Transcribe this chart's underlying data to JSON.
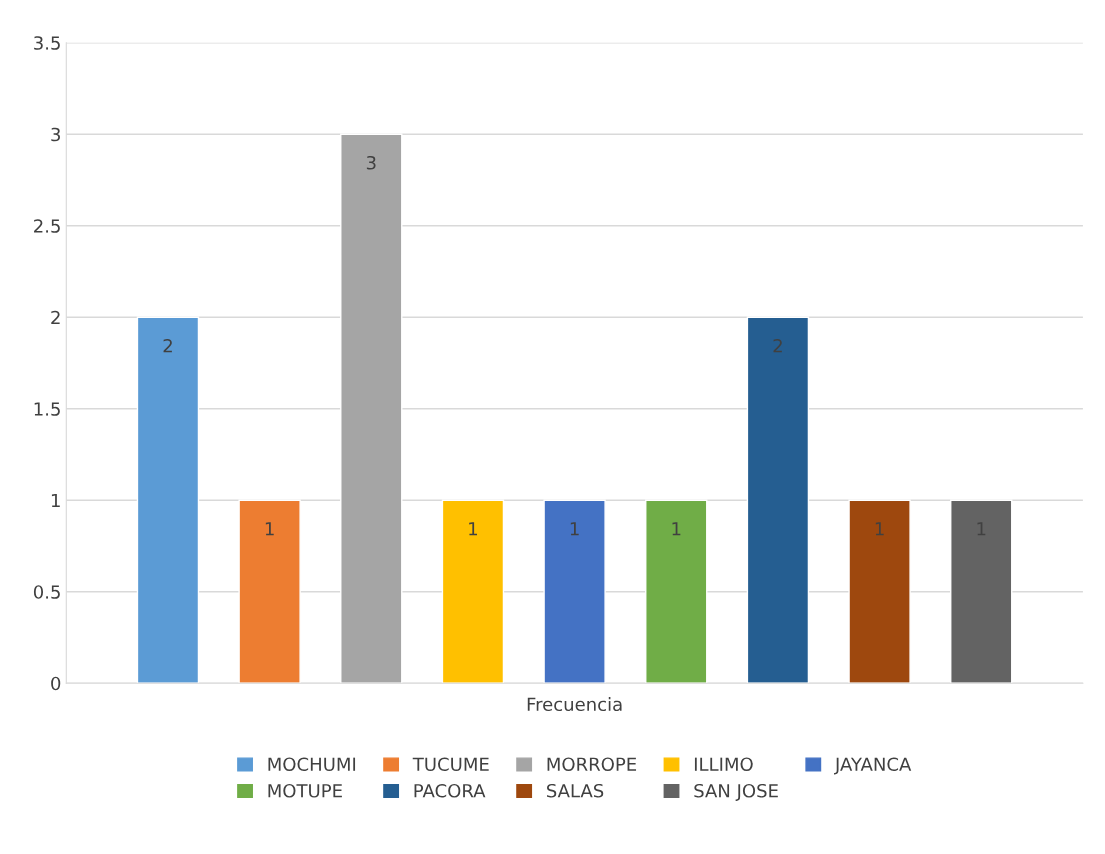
{
  "chart_data": {
    "type": "bar",
    "categories": [
      "Frecuencia"
    ],
    "series": [
      {
        "name": "MOCHUMI",
        "color": "#5b9bd5",
        "values": [
          2
        ]
      },
      {
        "name": "TUCUME",
        "color": "#ed7d31",
        "values": [
          1
        ]
      },
      {
        "name": "MORROPE",
        "color": "#a5a5a5",
        "values": [
          3
        ]
      },
      {
        "name": "ILLIMO",
        "color": "#ffc000",
        "values": [
          1
        ]
      },
      {
        "name": "JAYANCA",
        "color": "#4472c4",
        "values": [
          1
        ]
      },
      {
        "name": "MOTUPE",
        "color": "#70ad47",
        "values": [
          1
        ]
      },
      {
        "name": "PACORA",
        "color": "#255e91",
        "values": [
          2
        ]
      },
      {
        "name": "SALAS",
        "color": "#9e480e",
        "values": [
          1
        ]
      },
      {
        "name": "SAN JOSE",
        "color": "#636363",
        "values": [
          1
        ]
      }
    ],
    "ylim": [
      0,
      3.5
    ],
    "yticks": [
      0,
      0.5,
      1,
      1.5,
      2,
      2.5,
      3,
      3.5
    ],
    "grid": "y",
    "legend": "bottom",
    "data_labels": true
  }
}
